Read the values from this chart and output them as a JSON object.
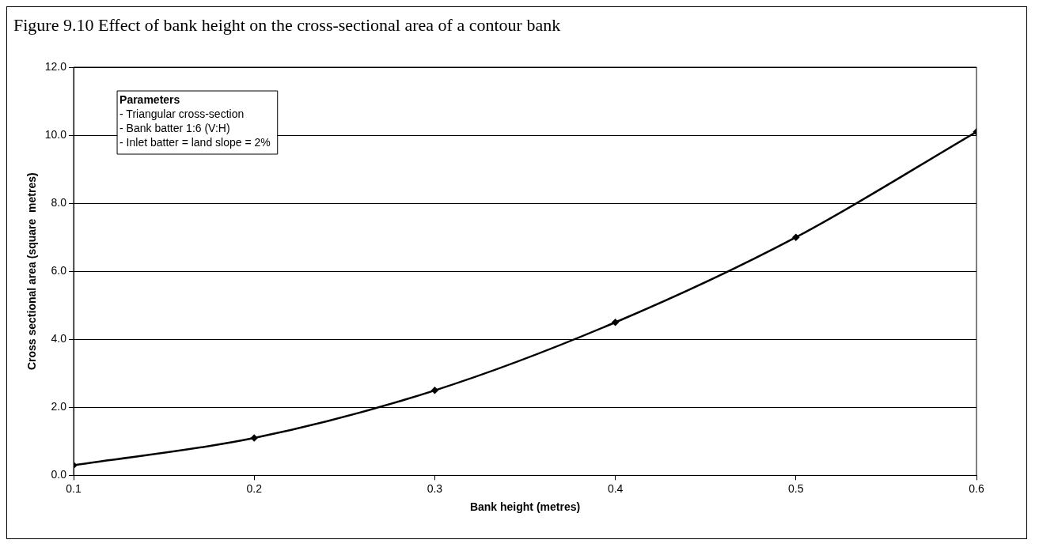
{
  "chart_data": {
    "type": "line",
    "title": "Figure 9.10 Effect of bank height on the cross-sectional area of a contour bank",
    "xlabel": "Bank height (metres)",
    "ylabel": "Cross sectional area (square  metres)",
    "x": [
      0.1,
      0.2,
      0.3,
      0.4,
      0.5,
      0.6
    ],
    "series": [
      {
        "color": "#000000",
        "values": [
          0.3,
          1.1,
          2.5,
          4.5,
          7.0,
          10.1
        ]
      }
    ],
    "xlim": [
      0.1,
      0.6
    ],
    "xticks": [
      0.1,
      0.2,
      0.3,
      0.4,
      0.5,
      0.6
    ],
    "ylim": [
      0,
      12
    ],
    "yticks": [
      {
        "value": 0,
        "label": "0.0"
      },
      {
        "value": 2,
        "label": "2.0"
      },
      {
        "value": 4,
        "label": "4.0"
      },
      {
        "value": 6,
        "label": "6.0"
      },
      {
        "value": 8,
        "label": "8.0"
      },
      {
        "value": 10,
        "label": "10.0"
      },
      {
        "value": 12,
        "label": "12.0"
      }
    ],
    "grid": "y",
    "marker": "diamond",
    "line_style": "solid",
    "legend": false,
    "annotations": [
      "Parameters",
      "- Triangular cross-section",
      "- Bank batter 1:6 (V:H)",
      "- Inlet batter = land slope = 2%"
    ]
  }
}
